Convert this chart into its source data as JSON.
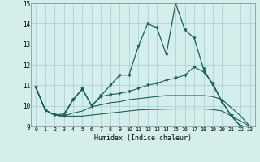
{
  "xlabel": "Humidex (Indice chaleur)",
  "xlim_min": -0.5,
  "xlim_max": 23.5,
  "ylim_min": 9,
  "ylim_max": 15,
  "xticks": [
    0,
    1,
    2,
    3,
    4,
    5,
    6,
    7,
    8,
    9,
    10,
    11,
    12,
    13,
    14,
    15,
    16,
    17,
    18,
    19,
    20,
    21,
    22,
    23
  ],
  "yticks": [
    9,
    10,
    11,
    12,
    13,
    14,
    15
  ],
  "bg_color": "#d4eeec",
  "grid_color": "#a8ccca",
  "line_color": "#1a6058",
  "series_main": [
    10.9,
    9.8,
    9.55,
    9.6,
    10.3,
    10.8,
    10.0,
    10.5,
    11.0,
    11.5,
    11.5,
    12.9,
    14.0,
    13.8,
    12.5,
    15.0,
    13.7,
    13.3,
    11.8,
    11.0,
    10.2,
    9.5,
    9.0,
    8.8
  ],
  "series_upper": [
    10.9,
    9.8,
    9.55,
    9.5,
    10.3,
    10.85,
    10.0,
    10.45,
    10.55,
    10.6,
    10.7,
    10.85,
    11.0,
    11.1,
    11.25,
    11.35,
    11.5,
    11.9,
    11.65,
    11.1,
    10.2,
    9.5,
    9.0,
    8.8
  ],
  "series_mid": [
    10.9,
    9.8,
    9.55,
    9.5,
    9.65,
    9.75,
    9.95,
    10.05,
    10.15,
    10.2,
    10.3,
    10.35,
    10.4,
    10.45,
    10.5,
    10.5,
    10.5,
    10.5,
    10.5,
    10.45,
    10.3,
    9.9,
    9.5,
    9.0
  ],
  "series_lower": [
    10.9,
    9.8,
    9.55,
    9.5,
    9.5,
    9.5,
    9.55,
    9.6,
    9.65,
    9.7,
    9.75,
    9.8,
    9.82,
    9.83,
    9.84,
    9.85,
    9.85,
    9.85,
    9.85,
    9.82,
    9.75,
    9.5,
    9.25,
    9.0
  ]
}
